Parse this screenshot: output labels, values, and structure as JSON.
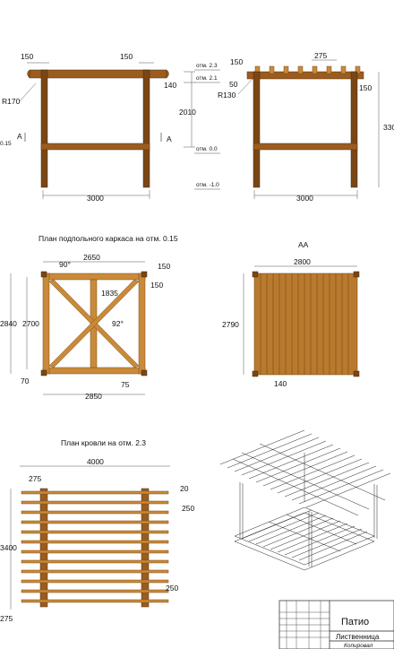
{
  "front_view": {
    "dim_top_left": "150",
    "dim_top_right": "150",
    "radius_label": "R170",
    "height_label": "2010",
    "height_upper": "140",
    "section_mark_left": "A",
    "section_mark_right": "A",
    "level_left": "0.15",
    "width_label": "3000",
    "levels": [
      "отм. 2.3",
      "отм. 2.1",
      "отм. 0.0",
      "отм. -1.0"
    ]
  },
  "side_view": {
    "dim_150": "150",
    "dim_50": "50",
    "radius_label": "R130",
    "dim_275": "275",
    "dim_150_right": "150",
    "height_label": "330",
    "width_label": "3000"
  },
  "floor_frame": {
    "title": "План подпольного каркаса на отм. 0.15",
    "angle_top": "90°",
    "width_top": "2650",
    "dim_150a": "150",
    "dim_150b": "150",
    "diag": "1835",
    "angle_mid": "92°",
    "height_outer": "2840",
    "height_inner": "2700",
    "dim_70": "70",
    "dim_75": "75",
    "width_bottom": "2850"
  },
  "deck_plan": {
    "title": "АА",
    "width": "2800",
    "height": "2790",
    "board": "140"
  },
  "roof_plan": {
    "title": "План кровли на отм. 2.3",
    "width": "4000",
    "dim_275_top": "275",
    "dim_20": "20",
    "dim_250a": "250",
    "height": "3400",
    "dim_250b": "250",
    "dim_275_bottom": "275"
  },
  "title_block": {
    "name": "Патио",
    "material": "Лиственница",
    "format": "Копировал"
  },
  "colors": {
    "wood_dark": "#7a4615",
    "wood": "#9a5c1f",
    "wood_light": "#c98a3a",
    "deck": "#b97a2e"
  }
}
